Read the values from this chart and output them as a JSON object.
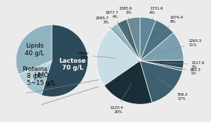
{
  "left_pie": {
    "labels": [
      "Lipids\n40 g/L",
      "Proteins\n8 g/L",
      "HMO\n5~15 g/L",
      "Lactose\n70 g/L"
    ],
    "sizes": [
      40,
      8,
      10,
      70
    ],
    "colors": [
      "#8fb3c0",
      "#b8d0d8",
      "#a0c0cc",
      "#2d4a5a"
    ],
    "startangle": 90,
    "label_fontsize": 6.5
  },
  "right_pie": {
    "labels": [
      "1585.6\n5%",
      "1877.7\n4%",
      "2095.7\n3%",
      "Other\n23%",
      "1220.4\n20%",
      "709.3\n17%",
      "865.3\n1%",
      "1517.6\n3%",
      "1265.5\n11%",
      "1074.4\n8%",
      "1731.6\n6%"
    ],
    "sizes": [
      5,
      4,
      3,
      23,
      20,
      17,
      1,
      3,
      11,
      8,
      6
    ],
    "colors": [
      "#6b8c96",
      "#4a6872",
      "#8fb3c0",
      "#c8dde4",
      "#1a2e38",
      "#3d6070",
      "#5a7d8c",
      "#2d4a5a",
      "#7a9fae",
      "#4d7282",
      "#5e8898"
    ],
    "startangle": 90,
    "label_fontsize": 4.0
  },
  "bg_color": "#ebebeb",
  "connection_line_color": "gray",
  "connection_line_lw": 0.5
}
